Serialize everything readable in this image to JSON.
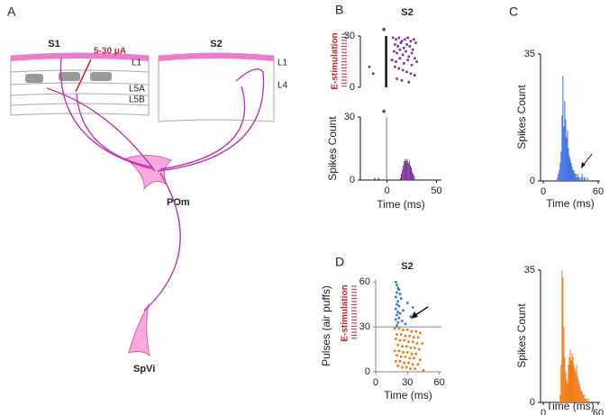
{
  "diagram": {
    "panel": "A",
    "s1": "S1",
    "s2": "S2",
    "current": "5-30 μA",
    "s1_layers": [
      "L1",
      "L5A",
      "L5B"
    ],
    "s2_layers": [
      "L1",
      "L4"
    ],
    "pom": "POm",
    "spvi": "SpVi"
  },
  "chart_data": [
    {
      "type": "scatter",
      "panel": "B",
      "title": "S2",
      "annotation": "E-stimulation",
      "marker": "*",
      "stim_x": 0,
      "xlim": [
        -27,
        55
      ],
      "ylim": [
        0,
        30
      ],
      "yticks": [
        0,
        30
      ],
      "series": [
        {
          "color": "#7b2e9e",
          "x": [
            -18,
            -14,
            6,
            9,
            12,
            15,
            18,
            21,
            24,
            27,
            8,
            11,
            14,
            17,
            20,
            23,
            26,
            29,
            7,
            10,
            13,
            16,
            19,
            22,
            25,
            28,
            5,
            9,
            13,
            17,
            21,
            25,
            30,
            8,
            12,
            16,
            20,
            24,
            28,
            10,
            15,
            22
          ],
          "values": [
            12,
            8,
            29,
            28,
            29,
            27,
            28,
            29,
            27,
            28,
            25,
            24,
            26,
            23,
            25,
            24,
            22,
            26,
            21,
            20,
            22,
            19,
            21,
            18,
            20,
            17,
            16,
            15,
            17,
            14,
            16,
            13,
            15,
            12,
            11,
            10,
            9,
            8,
            7,
            5,
            4,
            3
          ]
        }
      ]
    },
    {
      "type": "histogram",
      "marker": "*",
      "xlabel": "Time (ms)",
      "ylabel": "Spikes Count",
      "xlim": [
        -27,
        55
      ],
      "ylim": [
        0,
        30
      ],
      "xticks": [
        0,
        50
      ],
      "yticks": [
        0,
        30
      ],
      "series": [
        {
          "color": "#7b2e9e",
          "bins": [
            13,
            14,
            15,
            16,
            17,
            18,
            19,
            20,
            21,
            22,
            23,
            24,
            25,
            26,
            27,
            28
          ],
          "values": [
            1,
            3,
            5,
            7,
            9,
            10,
            9,
            10,
            8,
            9,
            7,
            6,
            4,
            3,
            2
          ]
        },
        {
          "color": "#888888",
          "bins": [
            -1,
            0
          ],
          "values": [
            30
          ]
        },
        {
          "color": "#222222",
          "bins": [
            -13,
            -12
          ],
          "values": [
            1
          ]
        },
        {
          "color": "#222222",
          "bins": [
            -9,
            -8
          ],
          "values": [
            1
          ]
        }
      ]
    },
    {
      "type": "histogram",
      "panel": "C",
      "xlabel": "Time (ms)",
      "ylabel": "Spikes Count",
      "xlim": [
        -3,
        62
      ],
      "ylim": [
        0,
        35
      ],
      "xticks": [
        0,
        60
      ],
      "yticks": [
        0,
        35
      ],
      "series": [
        {
          "color": "#3d6fe0",
          "bins": [
            15,
            16,
            17,
            18,
            19,
            20,
            21,
            22,
            23,
            24,
            25,
            26,
            27,
            28,
            29,
            30,
            31,
            32,
            33,
            34,
            35,
            36,
            37,
            38,
            39,
            40,
            41,
            42,
            43,
            44,
            45,
            46,
            47,
            48,
            49,
            50
          ],
          "values": [
            1,
            2,
            3,
            5,
            8,
            18,
            29,
            15,
            22,
            17,
            12,
            14,
            9,
            7,
            6,
            5,
            4,
            3,
            3,
            2,
            2,
            1,
            2,
            1,
            1,
            0,
            1,
            2,
            0,
            1,
            1,
            0,
            0,
            1,
            0
          ]
        }
      ]
    },
    {
      "type": "histogram",
      "xlabel": "Time (ms)",
      "ylabel": "Spikes Count",
      "xlim": [
        -3,
        62
      ],
      "ylim": [
        0,
        35
      ],
      "xticks": [
        0,
        60
      ],
      "yticks": [
        0,
        35
      ],
      "series": [
        {
          "color": "#f07a10",
          "bins": [
            18,
            19,
            20,
            21,
            22,
            23,
            24,
            25,
            26,
            27,
            28,
            29,
            30,
            31,
            32,
            33,
            34,
            35,
            36,
            37,
            38,
            39,
            40,
            41,
            42,
            43,
            44,
            45,
            46,
            47,
            48,
            49,
            50
          ],
          "values": [
            2,
            10,
            35,
            33,
            20,
            12,
            8,
            6,
            5,
            10,
            12,
            14,
            11,
            13,
            12,
            10,
            9,
            8,
            10,
            7,
            6,
            5,
            4,
            3,
            3,
            2,
            2,
            1,
            1,
            1,
            0,
            1
          ]
        }
      ]
    },
    {
      "type": "scatter",
      "panel": "D",
      "title": "S2",
      "annotation": "E-stimulation",
      "xlabel": "Time (ms)",
      "ylabel": "Pulses (air puffs)",
      "xlim": [
        0,
        62
      ],
      "ylim": [
        0,
        62
      ],
      "xticks": [
        0,
        30,
        60
      ],
      "yticks": [
        0,
        30,
        60
      ],
      "hline": 30,
      "series": [
        {
          "color": "#3d6fe0",
          "x": [
            19,
            20,
            21,
            22,
            20,
            23,
            19,
            24,
            21,
            30,
            20,
            22,
            35,
            19,
            26,
            21,
            23,
            20,
            33,
            22,
            19,
            25,
            21,
            28,
            20
          ],
          "values": [
            60,
            58,
            56,
            55,
            53,
            52,
            50,
            49,
            47,
            46,
            45,
            44,
            43,
            42,
            41,
            40,
            39,
            38,
            37,
            36,
            35,
            34,
            33,
            32,
            31
          ]
        },
        {
          "color": "#f07a10",
          "x": [
            18,
            22,
            26,
            30,
            34,
            38,
            42,
            20,
            24,
            28,
            32,
            36,
            40,
            19,
            23,
            27,
            31,
            35,
            39,
            44,
            21,
            25,
            29,
            33,
            37,
            41,
            18,
            22,
            26,
            30,
            34,
            38,
            20,
            24,
            28,
            32,
            36,
            42,
            19,
            23,
            27,
            31,
            35,
            40,
            21,
            25,
            29,
            33,
            37,
            45
          ],
          "values": [
            29,
            29,
            28,
            28,
            27,
            27,
            26,
            25,
            25,
            24,
            24,
            23,
            23,
            22,
            21,
            21,
            20,
            20,
            19,
            19,
            18,
            17,
            17,
            16,
            16,
            15,
            14,
            14,
            13,
            13,
            12,
            12,
            11,
            10,
            10,
            9,
            9,
            8,
            7,
            7,
            6,
            6,
            5,
            5,
            4,
            3,
            3,
            2,
            2,
            1
          ]
        }
      ]
    }
  ]
}
